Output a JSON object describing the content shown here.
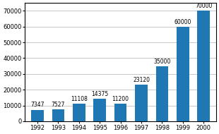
{
  "chart_data": {
    "type": "bar",
    "categories": [
      "1992",
      "1993",
      "1994",
      "1995",
      "1996",
      "1997",
      "1998",
      "1999",
      "2000"
    ],
    "values": [
      7347,
      7527,
      11108,
      14375,
      11200,
      23120,
      35000,
      60000,
      70000
    ],
    "ylim": [
      0,
      75000
    ],
    "yticks": [
      0,
      10000,
      20000,
      30000,
      40000,
      50000,
      60000,
      70000
    ],
    "grid": true,
    "data_labels": true
  }
}
